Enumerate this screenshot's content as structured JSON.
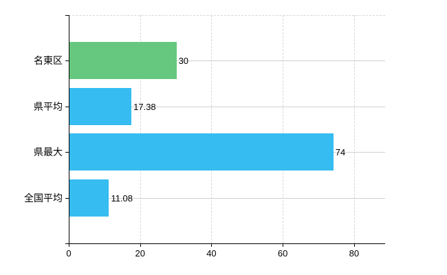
{
  "chart_data": {
    "type": "bar",
    "orientation": "horizontal",
    "title": "",
    "xlabel": "",
    "ylabel": "",
    "categories": [
      "名東区",
      "県平均",
      "県最大",
      "全国平均"
    ],
    "values": [
      30,
      17.38,
      74,
      11.08
    ],
    "value_labels": [
      "30",
      "17.38",
      "74",
      "11.08"
    ],
    "bar_colors": [
      "#66c87e",
      "#36bcf1",
      "#36bcf1",
      "#36bcf1"
    ],
    "x_ticks": [
      {
        "value": 0,
        "label": "0"
      },
      {
        "value": 20,
        "label": "20"
      },
      {
        "value": 40,
        "label": "40"
      },
      {
        "value": 60,
        "label": "60"
      },
      {
        "value": 80,
        "label": "80"
      }
    ],
    "xlim": [
      0,
      88.7
    ],
    "grid": "on",
    "legend": "none",
    "colors": {
      "background": "#ffffff",
      "axis": "#000000",
      "grid_horizontal": "#ccd4cc",
      "grid_vertical": "#d8d2d8",
      "text": "#000000",
      "green_bar": "#66c87e",
      "blue_bar": "#36bcf1"
    }
  }
}
